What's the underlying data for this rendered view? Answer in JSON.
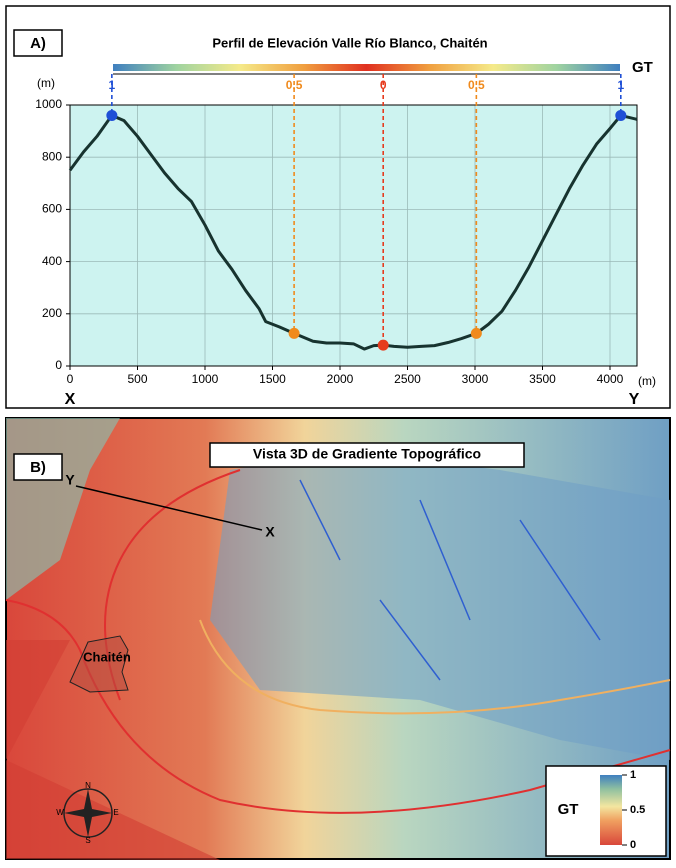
{
  "chart_data": {
    "type": "line",
    "panel_label": "A)",
    "title": "Perfil de Elevación Valle Río Blanco, Chaitén",
    "y_unit": "(m)",
    "x_unit": "(m)",
    "x_start_label": "X",
    "x_end_label": "Y",
    "xlim": [
      0,
      4200
    ],
    "ylim": [
      0,
      1000
    ],
    "xticks": [
      0,
      500,
      1000,
      1500,
      2000,
      2500,
      3000,
      3500,
      4000
    ],
    "yticks": [
      0,
      200,
      400,
      600,
      800,
      1000
    ],
    "grid": true,
    "series": [
      {
        "color": "#17332f",
        "x": [
          0,
          100,
          200,
          310,
          400,
          500,
          600,
          700,
          800,
          900,
          1000,
          1100,
          1200,
          1300,
          1400,
          1450,
          1550,
          1660,
          1800,
          1900,
          2000,
          2100,
          2180,
          2250,
          2320,
          2400,
          2500,
          2600,
          2700,
          2800,
          2900,
          3010,
          3100,
          3200,
          3300,
          3400,
          3500,
          3600,
          3700,
          3800,
          3900,
          4000,
          4080,
          4200
        ],
        "values": [
          750,
          820,
          880,
          960,
          940,
          880,
          810,
          740,
          680,
          630,
          540,
          440,
          370,
          290,
          220,
          170,
          150,
          125,
          95,
          88,
          88,
          85,
          65,
          78,
          80,
          75,
          72,
          75,
          78,
          90,
          105,
          125,
          160,
          210,
          290,
          380,
          480,
          580,
          680,
          770,
          850,
          910,
          960,
          945
        ]
      }
    ],
    "points": {
      "x": [
        310,
        1660,
        2320,
        3010,
        4080
      ],
      "values": [
        960,
        125,
        80,
        125,
        960
      ],
      "gt": [
        1,
        0.5,
        0,
        0.5,
        1
      ],
      "colors": [
        "#1f4fd6",
        "#f08a1c",
        "#e63b1e",
        "#f08a1c",
        "#1f4fd6"
      ]
    },
    "colorbar": {
      "label": "GT",
      "colors": [
        "#3f7fbf",
        "#9fd3a0",
        "#f5ea8a",
        "#f0a040",
        "#e03020",
        "#f0a040",
        "#f5ea8a",
        "#9fd3a0",
        "#3f7fbf"
      ]
    }
  },
  "panel_b": {
    "panel_label": "B)",
    "title": "Vista 3D de Gradiente Topográfico",
    "point_y": "Y",
    "point_x": "X",
    "town": "Chaitén",
    "compass": {
      "n": "N",
      "s": "S",
      "e": "E",
      "w": "W"
    },
    "legend": {
      "label": "GT",
      "ticks": [
        1,
        0.5,
        0
      ]
    }
  }
}
